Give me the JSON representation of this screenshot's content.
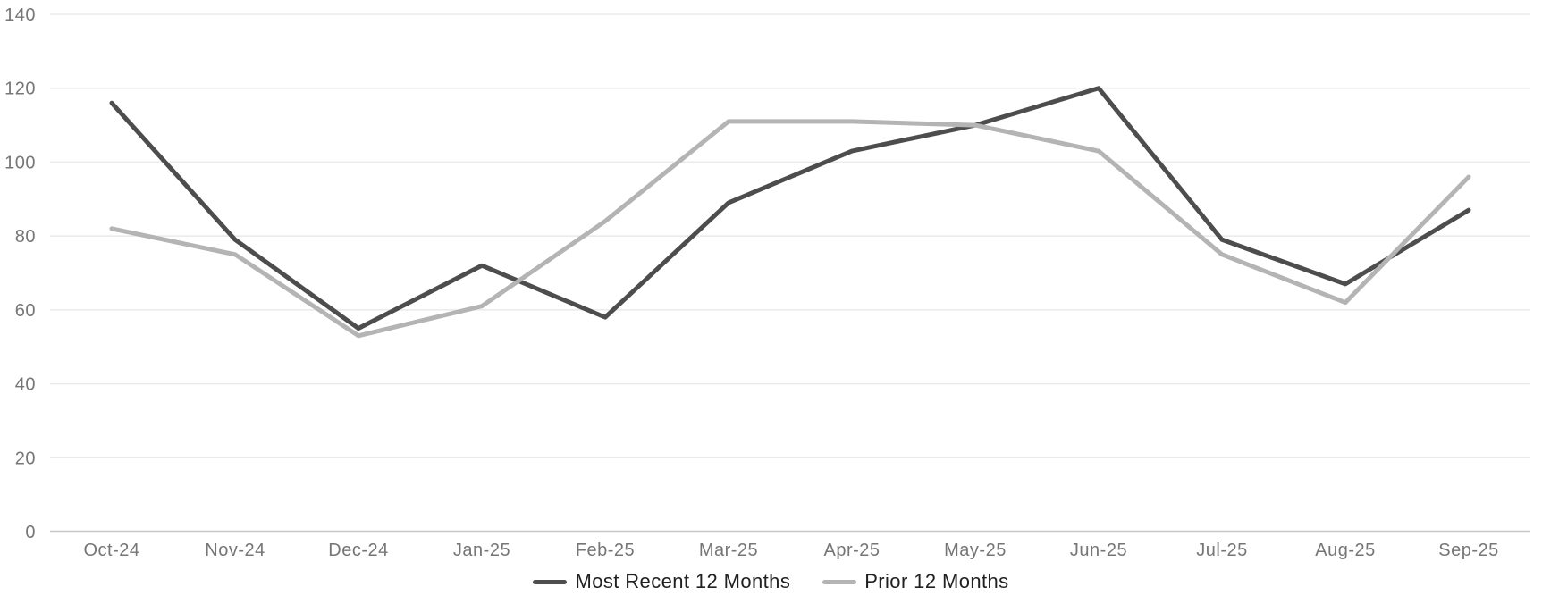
{
  "chart_data": {
    "type": "line",
    "title": "",
    "xlabel": "",
    "ylabel": "",
    "categories": [
      "Oct-24",
      "Nov-24",
      "Dec-24",
      "Jan-25",
      "Feb-25",
      "Mar-25",
      "Apr-25",
      "May-25",
      "Jun-25",
      "Jul-25",
      "Aug-25",
      "Sep-25"
    ],
    "series": [
      {
        "name": "Most Recent 12 Months",
        "color": "#4d4d4d",
        "values": [
          116,
          79,
          55,
          72,
          58,
          89,
          103,
          110,
          120,
          79,
          67,
          87
        ]
      },
      {
        "name": "Prior 12 Months",
        "color": "#b4b4b4",
        "values": [
          82,
          75,
          53,
          61,
          84,
          111,
          111,
          110,
          103,
          75,
          62,
          96
        ]
      }
    ],
    "ylim": [
      0,
      140
    ],
    "yticks": [
      0,
      20,
      40,
      60,
      80,
      100,
      120,
      140
    ],
    "grid": true,
    "legend_position": "bottom"
  },
  "style": {
    "gridline_color": "#eaeaea",
    "axis_line_color": "#c8c8c8",
    "tick_label_color": "#767676",
    "legend_text_color": "#212121",
    "background_color": "#ffffff",
    "line_width": 5
  }
}
